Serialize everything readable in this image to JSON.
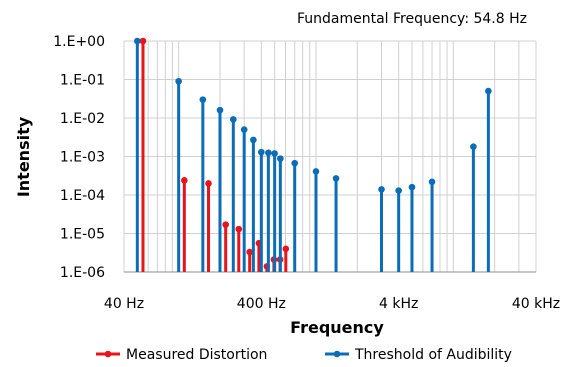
{
  "chart_data": {
    "type": "stem",
    "annotation": "Fundamental Frequency: 54.8 Hz",
    "xlabel": "Frequency",
    "ylabel": "Intensity",
    "x_scale": "log",
    "y_scale": "log",
    "xlim": [
      40,
      40000
    ],
    "ylim": [
      1e-06,
      1
    ],
    "x_ticks": [
      {
        "value": 40,
        "label": "40 Hz"
      },
      {
        "value": 400,
        "label": "400 Hz"
      },
      {
        "value": 4000,
        "label": "4 kHz"
      },
      {
        "value": 40000,
        "label": "40 kHz"
      }
    ],
    "y_ticks": [
      {
        "value": 1,
        "label": "1.E+00"
      },
      {
        "value": 0.1,
        "label": "1.E-01"
      },
      {
        "value": 0.01,
        "label": "1.E-02"
      },
      {
        "value": 0.001,
        "label": "1.E-03"
      },
      {
        "value": 0.0001,
        "label": "1.E-04"
      },
      {
        "value": 1e-05,
        "label": "1.E-05"
      },
      {
        "value": 1e-06,
        "label": "1.E-06"
      }
    ],
    "grid": true,
    "legend_position": "bottom",
    "series": [
      {
        "name": "Measured Distortion",
        "color": "#e8141b",
        "points": [
          {
            "x": 55,
            "y": 1.0
          },
          {
            "x": 110,
            "y": 0.00024
          },
          {
            "x": 165,
            "y": 0.0002
          },
          {
            "x": 220,
            "y": 1.7e-05
          },
          {
            "x": 274,
            "y": 1.3e-05
          },
          {
            "x": 329,
            "y": 3.3e-06
          },
          {
            "x": 384,
            "y": 5.6e-06
          },
          {
            "x": 439,
            "y": 1.4e-06
          },
          {
            "x": 494,
            "y": 2.1e-06
          },
          {
            "x": 548,
            "y": 2.1e-06
          },
          {
            "x": 603,
            "y": 4e-06
          }
        ]
      },
      {
        "name": "Threshold of Audibility",
        "color": "#0b6db7",
        "points": [
          {
            "x": 50,
            "y": 1.0
          },
          {
            "x": 100,
            "y": 0.09
          },
          {
            "x": 150,
            "y": 0.03
          },
          {
            "x": 200,
            "y": 0.016
          },
          {
            "x": 250,
            "y": 0.0092
          },
          {
            "x": 300,
            "y": 0.005
          },
          {
            "x": 350,
            "y": 0.0027
          },
          {
            "x": 400,
            "y": 0.0013
          },
          {
            "x": 450,
            "y": 0.00125
          },
          {
            "x": 500,
            "y": 0.0012
          },
          {
            "x": 550,
            "y": 0.00088
          },
          {
            "x": 700,
            "y": 0.00067
          },
          {
            "x": 1000,
            "y": 0.00041
          },
          {
            "x": 1400,
            "y": 0.00027
          },
          {
            "x": 3000,
            "y": 0.00014
          },
          {
            "x": 4000,
            "y": 0.00013
          },
          {
            "x": 5000,
            "y": 0.00016
          },
          {
            "x": 7000,
            "y": 0.00022
          },
          {
            "x": 14000,
            "y": 0.0018
          },
          {
            "x": 18000,
            "y": 0.05
          }
        ]
      }
    ]
  }
}
